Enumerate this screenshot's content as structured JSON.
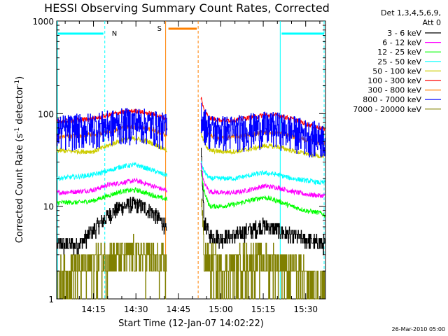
{
  "chart_data": {
    "type": "line",
    "title": "HESSI Observing Summary Count Rates, Corrected",
    "xlabel": "Start Time (12-Jan-07 14:02:22)",
    "ylabel_prefix": "Corrected Count Rate (s",
    "ylabel_sup1": "-1",
    "ylabel_mid": " detector",
    "ylabel_sup2": "-1",
    "ylabel_suffix": ")",
    "footer": "26-Mar-2010 05:00",
    "x_range_min": [
      842,
      937
    ],
    "ylim": [
      1,
      1000
    ],
    "yscale": "log",
    "grid": false,
    "x_ticks": [
      {
        "min": 855,
        "label": "14:15"
      },
      {
        "min": 870,
        "label": "14:30"
      },
      {
        "min": 885,
        "label": "14:45"
      },
      {
        "min": 900,
        "label": "15:00"
      },
      {
        "min": 915,
        "label": "15:15"
      },
      {
        "min": 930,
        "label": "15:30"
      }
    ],
    "y_ticks": [
      {
        "value": 1,
        "label": "1"
      },
      {
        "value": 10,
        "label": "10"
      },
      {
        "value": 100,
        "label": "100"
      },
      {
        "value": 1000,
        "label": "1000"
      }
    ],
    "legend": {
      "placement": "outside-right",
      "header1": "Det 1,3,4,5,6,9,",
      "header2": "Att 0"
    },
    "annotations": {
      "night": [
        {
          "label": "N",
          "start_min": 842,
          "end_min": 859
        },
        {
          "label": "",
          "start_min": 921,
          "end_min": 937
        }
      ],
      "saa": {
        "label": "S",
        "start_min": 880.5,
        "end_min": 892
      }
    },
    "gap_min": [
      881,
      893
    ],
    "series": [
      {
        "name": "3 - 6 keV",
        "color": "#000000",
        "values": [
          [
            842,
            3.8
          ],
          [
            850,
            3.9
          ],
          [
            855,
            5.5
          ],
          [
            860,
            8
          ],
          [
            865,
            10
          ],
          [
            870,
            10.5
          ],
          [
            875,
            9
          ],
          [
            880,
            6.5
          ],
          [
            881,
            4.5
          ],
          [
            893,
            40
          ],
          [
            894,
            7
          ],
          [
            896,
            4.8
          ],
          [
            900,
            4.6
          ],
          [
            905,
            4.8
          ],
          [
            910,
            5.5
          ],
          [
            915,
            6.2
          ],
          [
            920,
            5.6
          ],
          [
            925,
            4.8
          ],
          [
            930,
            4.3
          ],
          [
            935,
            4
          ],
          [
            937,
            4
          ]
        ]
      },
      {
        "name": "6 - 12 keV",
        "color": "#ff00ff",
        "values": [
          [
            842,
            14
          ],
          [
            850,
            14.5
          ],
          [
            855,
            15
          ],
          [
            860,
            17
          ],
          [
            865,
            18
          ],
          [
            870,
            19
          ],
          [
            875,
            17
          ],
          [
            880,
            15
          ],
          [
            881,
            15
          ],
          [
            893,
            28
          ],
          [
            894,
            18
          ],
          [
            896,
            14.5
          ],
          [
            900,
            14
          ],
          [
            905,
            14
          ],
          [
            910,
            15
          ],
          [
            915,
            16.5
          ],
          [
            920,
            16
          ],
          [
            925,
            14.5
          ],
          [
            930,
            13.5
          ],
          [
            935,
            13
          ],
          [
            937,
            13
          ]
        ]
      },
      {
        "name": "12 - 25 keV",
        "color": "#00ff00",
        "values": [
          [
            842,
            11
          ],
          [
            850,
            11
          ],
          [
            855,
            11.5
          ],
          [
            860,
            13
          ],
          [
            865,
            14.5
          ],
          [
            870,
            15
          ],
          [
            875,
            13.5
          ],
          [
            880,
            12
          ],
          [
            881,
            12
          ],
          [
            893,
            24
          ],
          [
            894,
            15
          ],
          [
            896,
            10
          ],
          [
            900,
            10
          ],
          [
            905,
            10.5
          ],
          [
            910,
            11.5
          ],
          [
            915,
            12.5
          ],
          [
            920,
            11.5
          ],
          [
            925,
            10
          ],
          [
            930,
            9
          ],
          [
            935,
            8.5
          ],
          [
            937,
            8
          ]
        ]
      },
      {
        "name": "25 - 50 keV",
        "color": "#00ffff",
        "values": [
          [
            842,
            20
          ],
          [
            850,
            21
          ],
          [
            855,
            22
          ],
          [
            860,
            24
          ],
          [
            865,
            27
          ],
          [
            870,
            28
          ],
          [
            875,
            25
          ],
          [
            880,
            22
          ],
          [
            881,
            22
          ],
          [
            893,
            30
          ],
          [
            894,
            24
          ],
          [
            896,
            20
          ],
          [
            900,
            20
          ],
          [
            905,
            20
          ],
          [
            910,
            21.5
          ],
          [
            915,
            23
          ],
          [
            920,
            22
          ],
          [
            925,
            20
          ],
          [
            930,
            19
          ],
          [
            935,
            18
          ],
          [
            937,
            18
          ]
        ]
      },
      {
        "name": "50 - 100 keV",
        "color": "#cccc00",
        "values": [
          [
            842,
            40
          ],
          [
            850,
            39
          ],
          [
            855,
            39
          ],
          [
            860,
            45
          ],
          [
            865,
            52
          ],
          [
            870,
            54
          ],
          [
            875,
            49
          ],
          [
            880,
            42
          ],
          [
            881,
            40
          ],
          [
            893,
            60
          ],
          [
            894,
            50
          ],
          [
            896,
            40
          ],
          [
            900,
            39
          ],
          [
            905,
            39
          ],
          [
            910,
            41
          ],
          [
            915,
            45
          ],
          [
            920,
            44
          ],
          [
            925,
            40
          ],
          [
            930,
            37
          ],
          [
            935,
            35
          ],
          [
            937,
            35
          ]
        ]
      },
      {
        "name": "100 - 300 keV",
        "color": "#ff0000",
        "values": [
          [
            842,
            82
          ],
          [
            850,
            86
          ],
          [
            855,
            88
          ],
          [
            860,
            96
          ],
          [
            865,
            104
          ],
          [
            870,
            107
          ],
          [
            875,
            100
          ],
          [
            880,
            90
          ],
          [
            881,
            88
          ],
          [
            893,
            150
          ],
          [
            894,
            110
          ],
          [
            896,
            90
          ],
          [
            900,
            85
          ],
          [
            905,
            86
          ],
          [
            910,
            90
          ],
          [
            915,
            96
          ],
          [
            920,
            96
          ],
          [
            925,
            88
          ],
          [
            930,
            78
          ],
          [
            935,
            70
          ],
          [
            937,
            68
          ]
        ]
      },
      {
        "name": "300 - 800 keV",
        "color": "#ff8000",
        "values": [
          [
            842,
            56
          ],
          [
            850,
            58
          ],
          [
            855,
            60
          ],
          [
            860,
            64
          ],
          [
            865,
            70
          ],
          [
            870,
            73
          ],
          [
            875,
            68
          ],
          [
            880,
            60
          ],
          [
            881,
            58
          ],
          [
            893,
            88
          ],
          [
            894,
            72
          ],
          [
            896,
            58
          ],
          [
            900,
            55
          ],
          [
            905,
            56
          ],
          [
            910,
            59
          ],
          [
            915,
            63
          ],
          [
            920,
            62
          ],
          [
            925,
            57
          ],
          [
            930,
            52
          ],
          [
            935,
            48
          ],
          [
            937,
            47
          ]
        ]
      },
      {
        "name": "800 - 7000 keV",
        "color": "#0000ff",
        "values": [
          [
            842,
            64
          ],
          [
            850,
            67
          ],
          [
            855,
            69
          ],
          [
            860,
            72
          ],
          [
            865,
            76
          ],
          [
            870,
            78
          ],
          [
            875,
            74
          ],
          [
            880,
            68
          ],
          [
            881,
            66
          ],
          [
            893,
            100
          ],
          [
            894,
            80
          ],
          [
            896,
            66
          ],
          [
            900,
            64
          ],
          [
            905,
            64
          ],
          [
            910,
            67
          ],
          [
            915,
            70
          ],
          [
            920,
            69
          ],
          [
            925,
            64
          ],
          [
            930,
            58
          ],
          [
            935,
            54
          ],
          [
            937,
            53
          ]
        ]
      },
      {
        "name": "7000 - 20000 keV",
        "color": "#808000",
        "values": [
          [
            842,
            2.0
          ],
          [
            850,
            2.5
          ],
          [
            855,
            2.8
          ],
          [
            860,
            3.1
          ],
          [
            865,
            3.3
          ],
          [
            870,
            3.4
          ],
          [
            875,
            3.1
          ],
          [
            880,
            2.7
          ],
          [
            881,
            2.7
          ],
          [
            893,
            14
          ],
          [
            894,
            3.5
          ],
          [
            896,
            2.8
          ],
          [
            900,
            2.6
          ],
          [
            905,
            2.7
          ],
          [
            910,
            2.9
          ],
          [
            915,
            3.0
          ],
          [
            920,
            2.8
          ],
          [
            925,
            2.5
          ],
          [
            930,
            2.0
          ],
          [
            935,
            1.6
          ],
          [
            937,
            1.5
          ]
        ]
      }
    ]
  }
}
